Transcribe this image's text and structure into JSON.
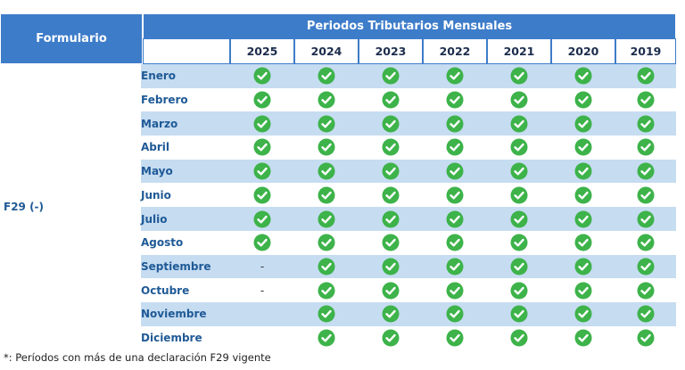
{
  "table": {
    "form_header": "Formulario",
    "period_header": "Periodos Tributarios Mensuales",
    "years": [
      "2025",
      "2024",
      "2023",
      "2022",
      "2021",
      "2020",
      "2019"
    ],
    "form": "F29 (-)",
    "rows": [
      {
        "month": "Enero",
        "cells": [
          true,
          true,
          true,
          true,
          true,
          true,
          true
        ]
      },
      {
        "month": "Febrero",
        "cells": [
          true,
          true,
          true,
          true,
          true,
          true,
          true
        ]
      },
      {
        "month": "Marzo",
        "cells": [
          true,
          true,
          true,
          true,
          true,
          true,
          true
        ]
      },
      {
        "month": "Abril",
        "cells": [
          true,
          true,
          true,
          true,
          true,
          true,
          true
        ]
      },
      {
        "month": "Mayo",
        "cells": [
          true,
          true,
          true,
          true,
          true,
          true,
          true
        ]
      },
      {
        "month": "Junio",
        "cells": [
          true,
          true,
          true,
          true,
          true,
          true,
          true
        ]
      },
      {
        "month": "Julio",
        "cells": [
          true,
          true,
          true,
          true,
          true,
          true,
          true
        ]
      },
      {
        "month": "Agosto",
        "cells": [
          true,
          true,
          true,
          true,
          true,
          true,
          true
        ]
      },
      {
        "month": "Septiembre",
        "cells": [
          "-",
          true,
          true,
          true,
          true,
          true,
          true
        ]
      },
      {
        "month": "Octubre",
        "cells": [
          "-",
          true,
          true,
          true,
          true,
          true,
          true
        ]
      },
      {
        "month": "Noviembre",
        "cells": [
          null,
          true,
          true,
          true,
          true,
          true,
          true
        ]
      },
      {
        "month": "Diciembre",
        "cells": [
          null,
          true,
          true,
          true,
          true,
          true,
          true
        ]
      }
    ]
  },
  "footnote": "*: Períodos con más de una declaración F29 vigente"
}
